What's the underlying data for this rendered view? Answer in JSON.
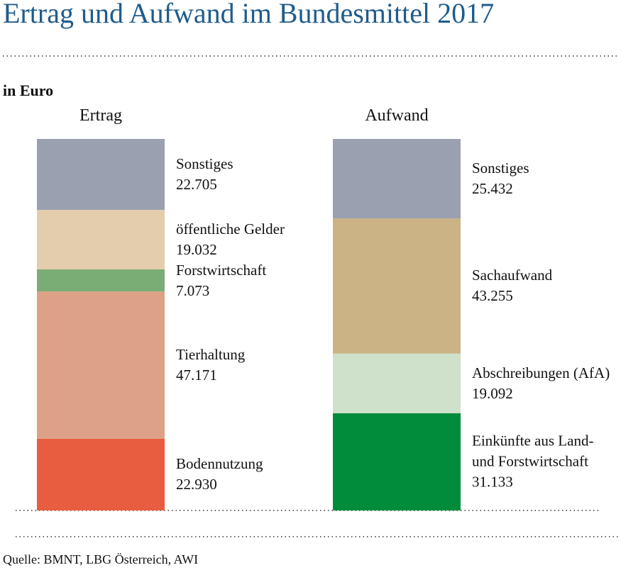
{
  "chart_data": {
    "type": "stacked-bar",
    "title": "Ertrag und Aufwand im Bundesmittel 2017",
    "subtitle": "in Euro",
    "source": "Quelle: BMNT, LBG Österreich, AWI",
    "categories": [
      "Ertrag",
      "Aufwand"
    ],
    "series": [
      {
        "name": "Bodennutzung",
        "color": "#e85d3f",
        "values": [
          22930,
          null
        ],
        "value_labels": [
          "22.930",
          null
        ]
      },
      {
        "name": "Tierhaltung",
        "color": "#dca187",
        "values": [
          47171,
          null
        ],
        "value_labels": [
          "47.171",
          null
        ]
      },
      {
        "name": "Forstwirtschaft",
        "color": "#7aad76",
        "values": [
          7073,
          null
        ],
        "value_labels": [
          "7.073",
          null
        ]
      },
      {
        "name": "öffentliche Gelder",
        "color": "#e4cdac",
        "values": [
          19032,
          null
        ],
        "value_labels": [
          "19.032",
          null
        ]
      },
      {
        "name": "Sonstiges",
        "color": "#9aa0b0",
        "values": [
          22705,
          null
        ],
        "value_labels": [
          "22.705",
          null
        ]
      },
      {
        "name": "Einkünfte aus Land- und Forst­wirtschaft",
        "color": "#008c3a",
        "values": [
          null,
          31133
        ],
        "value_labels": [
          null,
          "31.133"
        ]
      },
      {
        "name": "Abschreibungen (AfA)",
        "color": "#cfe0cb",
        "values": [
          null,
          19092
        ],
        "value_labels": [
          null,
          "19.092"
        ]
      },
      {
        "name": "Sachaufwand",
        "color": "#cbb385",
        "values": [
          null,
          43255
        ],
        "value_labels": [
          null,
          "43.255"
        ]
      },
      {
        "name": "Sonstiges",
        "color": "#9aa0b0",
        "values": [
          null,
          25432
        ],
        "value_labels": [
          null,
          "25.432"
        ]
      }
    ]
  }
}
